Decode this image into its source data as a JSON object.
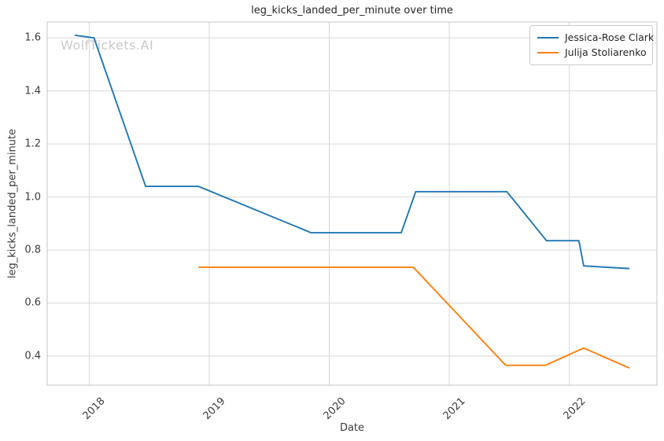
{
  "watermark": "WolfTickets.AI",
  "chart_data": {
    "type": "line",
    "title": "leg_kicks_landed_per_minute over time",
    "xlabel": "Date",
    "ylabel": "leg_kicks_landed_per_minute",
    "xlim": [
      2017.65,
      2022.73
    ],
    "ylim": [
      0.29,
      1.66
    ],
    "x_ticks": [
      2018,
      2019,
      2020,
      2021,
      2022
    ],
    "y_ticks": [
      0.4,
      0.6,
      0.8,
      1.0,
      1.2,
      1.4,
      1.6
    ],
    "grid": true,
    "legend_position": "upper right",
    "colors": {
      "grid": "#d8d8d8",
      "spine": "#c6c6c6",
      "tick_text": "#3c3c3c"
    },
    "series": [
      {
        "name": "Jessica-Rose Clark",
        "color": "#1f77b4",
        "x": [
          2017.88,
          2018.04,
          2018.47,
          2018.91,
          2019.85,
          2020.6,
          2020.72,
          2021.48,
          2021.81,
          2022.08,
          2022.12,
          2022.5
        ],
        "y": [
          1.61,
          1.6,
          1.04,
          1.04,
          0.865,
          0.865,
          1.02,
          1.02,
          0.835,
          0.835,
          0.74,
          0.73
        ]
      },
      {
        "name": "Julija Stoliarenko",
        "color": "#ff7f0e",
        "x": [
          2018.91,
          2020.7,
          2021.47,
          2021.8,
          2022.12,
          2022.5
        ],
        "y": [
          0.735,
          0.735,
          0.365,
          0.365,
          0.43,
          0.355
        ]
      }
    ]
  }
}
